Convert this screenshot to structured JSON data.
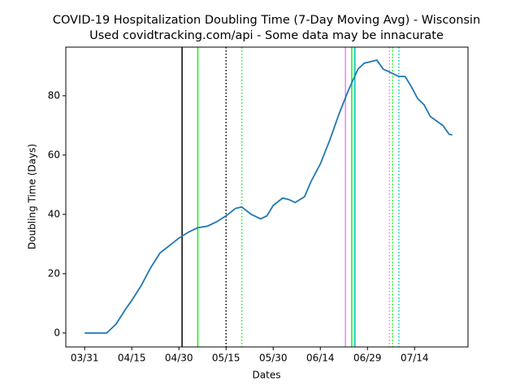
{
  "chart_data": {
    "type": "line",
    "title": "COVID-19 Hospitalization Doubling Time (7-Day Moving Avg) - Wisconsin",
    "subtitle": "Used covidtracking.com/api - Some data may be innacurate",
    "x_label": "Dates",
    "y_label": "Doubling Time (Days)",
    "x": [
      "03/31",
      "04/03",
      "04/07",
      "04/10",
      "04/13",
      "04/15",
      "04/18",
      "04/21",
      "04/24",
      "04/27",
      "04/30",
      "05/03",
      "05/06",
      "05/09",
      "05/12",
      "05/15",
      "05/18",
      "05/20",
      "05/23",
      "05/26",
      "05/28",
      "05/30",
      "06/02",
      "06/04",
      "06/06",
      "06/09",
      "06/11",
      "06/14",
      "06/17",
      "06/20",
      "06/23",
      "06/26",
      "06/28",
      "06/30",
      "07/02",
      "07/04",
      "07/07",
      "07/09",
      "07/11",
      "07/13",
      "07/15",
      "07/17",
      "07/19",
      "07/21",
      "07/23",
      "07/25",
      "07/26"
    ],
    "series": [
      {
        "color": "#1f77b4",
        "values": [
          0,
          0,
          0,
          3,
          8,
          11,
          16,
          22,
          27,
          29.5,
          32,
          34,
          35.5,
          36,
          37.5,
          39.5,
          42,
          42.5,
          40,
          38.5,
          39.5,
          43,
          45.5,
          45,
          44,
          46,
          51,
          57,
          65,
          74,
          82,
          89,
          91,
          91.5,
          92,
          89,
          87.5,
          86.5,
          86.5,
          83,
          79,
          77,
          73,
          71.5,
          70,
          67,
          66.8
        ]
      }
    ],
    "vlines": [
      {
        "x": "05/01",
        "color": "#000000",
        "style": "solid"
      },
      {
        "x": "05/06",
        "color": "#00ff00",
        "style": "solid"
      },
      {
        "x": "05/15",
        "color": "#000000",
        "style": "dotted"
      },
      {
        "x": "05/20",
        "color": "#00ff00",
        "style": "dotted"
      },
      {
        "x": "06/22",
        "color": "#ee82ee",
        "style": "solid"
      },
      {
        "x": "06/24",
        "color": "#00ff00",
        "style": "solid"
      },
      {
        "x": "06/25",
        "color": "#00bfbf",
        "style": "solid"
      },
      {
        "x": "07/06",
        "color": "#ee82ee",
        "style": "dotted"
      },
      {
        "x": "07/07",
        "color": "#00ff00",
        "style": "dotted"
      },
      {
        "x": "07/09",
        "color": "#00bfbf",
        "style": "dotted"
      }
    ],
    "xlim": [
      "03/25",
      "07/31"
    ],
    "xticks": [
      "03/31",
      "04/15",
      "04/30",
      "05/15",
      "05/30",
      "06/14",
      "06/29",
      "07/14"
    ],
    "ylim": [
      -4.7,
      96.4
    ],
    "yticks": [
      0,
      20,
      40,
      60,
      80
    ],
    "grid": false
  }
}
